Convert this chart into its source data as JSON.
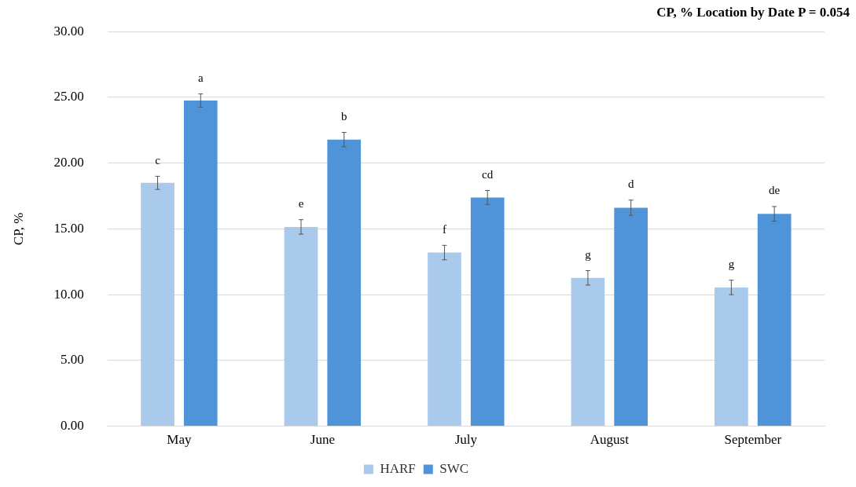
{
  "chart_data": {
    "type": "bar",
    "title": "CP, % Location by Date P = 0.054",
    "ylabel": "CP, %",
    "categories": [
      "May",
      "June",
      "July",
      "August",
      "September"
    ],
    "series": [
      {
        "name": "HARF",
        "color": "#a9caeb",
        "values": [
          18.5,
          15.15,
          13.2,
          11.28,
          10.55
        ],
        "errors": [
          0.5,
          0.55,
          0.55,
          0.55,
          0.55
        ],
        "value_labels": [
          "c",
          "e",
          "f",
          "g",
          "g"
        ]
      },
      {
        "name": "SWC",
        "color": "#4f94d9",
        "values": [
          24.76,
          21.79,
          17.39,
          16.61,
          16.14
        ],
        "errors": [
          0.5,
          0.55,
          0.53,
          0.58,
          0.56
        ],
        "value_labels": [
          "a",
          "b",
          "cd",
          "d",
          "de"
        ]
      }
    ],
    "ylim": [
      0,
      30
    ],
    "yticks": [
      {
        "value": 0,
        "label": "0.00"
      },
      {
        "value": 5,
        "label": "5.00"
      },
      {
        "value": 10,
        "label": "10.00"
      },
      {
        "value": 15,
        "label": "15.00"
      },
      {
        "value": 20,
        "label": "20.00"
      },
      {
        "value": 25,
        "label": "25.00"
      },
      {
        "value": 30,
        "label": "30.00"
      }
    ],
    "grid": "y",
    "legend": "bottom"
  }
}
